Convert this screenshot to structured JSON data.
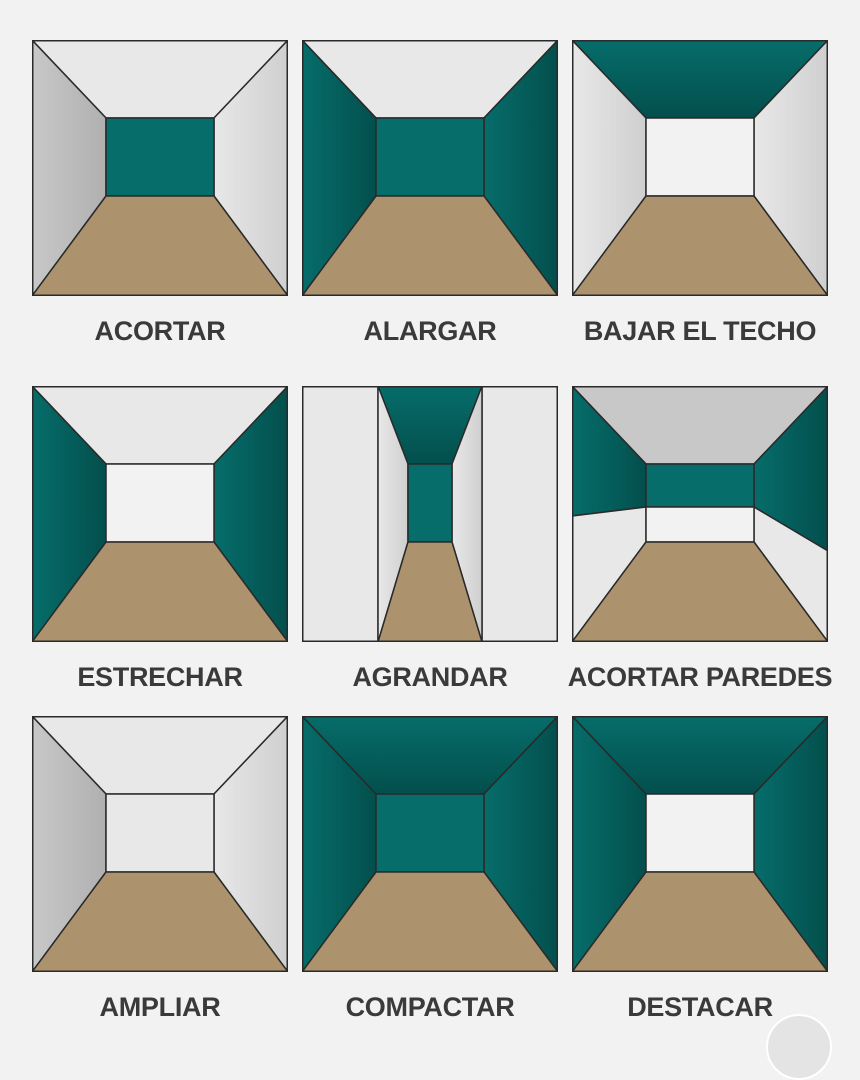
{
  "colors": {
    "teal": "#066d6a",
    "teal_dark": "#034f4d",
    "floor": "#ad936d",
    "light": "#e8e8e8",
    "grey": "#c8c8c8",
    "white": "#f2f2f2",
    "outline": "#2a2a2a",
    "caption": "#3a3a3a",
    "background": "#f2f2f2"
  },
  "rooms": [
    {
      "label": "ACORTAR",
      "ceiling": "light",
      "left": "grey",
      "right": "light",
      "back": "teal",
      "floor": "floor"
    },
    {
      "label": "ALARGAR",
      "ceiling": "light",
      "left": "teal",
      "right": "teal",
      "back": "teal",
      "floor": "floor"
    },
    {
      "label": "BAJAR EL TECHO",
      "ceiling": "teal",
      "left": "light",
      "right": "light",
      "back": "white",
      "floor": "floor"
    },
    {
      "label": "ESTRECHAR",
      "ceiling": "light",
      "left": "teal",
      "right": "teal",
      "back": "white",
      "floor": "floor"
    },
    {
      "label": "AGRANDAR",
      "ceiling": "teal",
      "left": "light",
      "right": "light",
      "back": "teal",
      "floor": "floor",
      "variant": "narrow-corridor"
    },
    {
      "label": "ACORTAR PAREDES",
      "ceiling": "grey",
      "left": "teal",
      "right": "teal",
      "back": "teal",
      "floor": "floor",
      "variant": "split-walls"
    },
    {
      "label": "AMPLIAR",
      "ceiling": "light",
      "left": "grey",
      "right": "light",
      "back": "light",
      "floor": "floor"
    },
    {
      "label": "COMPACTAR",
      "ceiling": "teal",
      "left": "teal",
      "right": "teal",
      "back": "teal",
      "floor": "floor"
    },
    {
      "label": "DESTACAR",
      "ceiling": "teal",
      "left": "teal",
      "right": "teal",
      "back": "white",
      "floor": "floor"
    }
  ]
}
